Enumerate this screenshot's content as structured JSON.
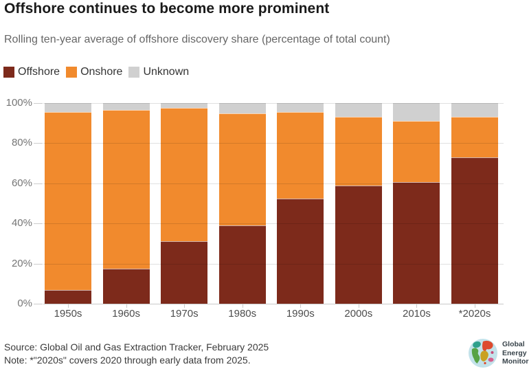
{
  "header": {
    "title": "Offshore continues to become more prominent",
    "subtitle": "Rolling ten-year average of offshore discovery share (percentage of total count)"
  },
  "chart_data": {
    "type": "bar",
    "stacked": true,
    "title": "Offshore continues to become more prominent",
    "subtitle": "Rolling ten-year average of offshore discovery share (percentage of total count)",
    "categories": [
      "1950s",
      "1960s",
      "1970s",
      "1980s",
      "1990s",
      "2000s",
      "2010s",
      "*2020s"
    ],
    "series": [
      {
        "name": "Offshore",
        "color": "#7D2A1B",
        "values": [
          7,
          17.5,
          31,
          39,
          52.5,
          59,
          60.5,
          73
        ]
      },
      {
        "name": "Onshore",
        "color": "#F18A2D",
        "values": [
          88.5,
          79,
          66.5,
          56,
          43,
          34,
          30.5,
          20
        ]
      },
      {
        "name": "Unknown",
        "color": "#D0D0D0",
        "values": [
          4.5,
          3.5,
          2.5,
          5,
          4.5,
          7,
          9,
          7
        ]
      }
    ],
    "ylim": [
      0,
      100
    ],
    "yticks": [
      "0%",
      "20%",
      "40%",
      "60%",
      "80%",
      "100%"
    ],
    "ytick_values": [
      0,
      20,
      40,
      60,
      80,
      100
    ],
    "grid": "horizontal",
    "legend_position": "top"
  },
  "footer": {
    "source": "Source: Global Oil and Gas Extraction Tracker, February 2025",
    "note": "Note: *\"2020s\" covers 2020 through early data from 2025."
  },
  "logo": {
    "lines": [
      "Global",
      "Energy",
      "Monitor"
    ]
  }
}
